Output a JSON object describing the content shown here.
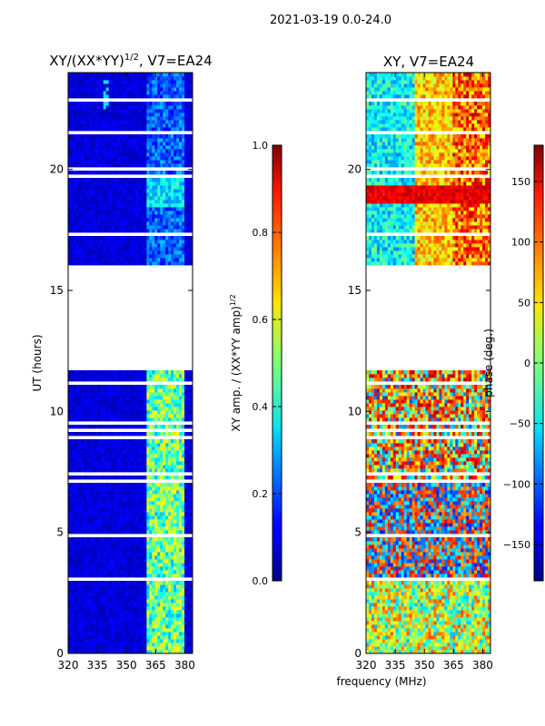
{
  "figure": {
    "suptitle": "2021-03-19 0.0-24.0",
    "common_xlabel": "frequency (MHz)"
  },
  "chart_data": [
    {
      "type": "heatmap",
      "name": "amplitude-ratio",
      "title": "XY/(XX*YY)",
      "title_superscript": "1/2",
      "title_suffix": ", V7=EA24",
      "xlabel": "",
      "ylabel": "UT (hours)",
      "xlim": [
        320,
        384
      ],
      "ylim": [
        0,
        24
      ],
      "xticks": [
        320,
        335,
        350,
        365,
        380
      ],
      "yticks": [
        0,
        5,
        10,
        15,
        20
      ],
      "data_gaps_hours": [
        [
          11.7,
          16.0
        ]
      ],
      "colorbar": {
        "label": "XY amp. / (XX*YY amp)",
        "label_superscript": "1/2",
        "range": [
          0.0,
          1.0
        ],
        "ticks": [
          "0.0",
          "0.2",
          "0.4",
          "0.6",
          "0.8",
          "1.0"
        ],
        "tick_values": [
          0.0,
          0.2,
          0.4,
          0.6,
          0.8,
          1.0
        ],
        "colormap": "jet"
      }
    },
    {
      "type": "heatmap",
      "name": "phase",
      "title": "XY, V7=EA24",
      "xlabel": "frequency (MHz)",
      "ylabel": "",
      "xlim": [
        320,
        384
      ],
      "ylim": [
        0,
        24
      ],
      "xticks": [
        320,
        335,
        350,
        365,
        380
      ],
      "yticks": [
        0,
        5,
        10,
        15,
        20
      ],
      "data_gaps_hours": [
        [
          11.7,
          16.0
        ]
      ],
      "colorbar": {
        "label": "phase (deg.)",
        "range": [
          -180,
          180
        ],
        "ticks": [
          "150",
          "100",
          "50",
          "0",
          "−50",
          "−100",
          "−150"
        ],
        "tick_values": [
          150,
          100,
          50,
          0,
          -50,
          -100,
          -150
        ],
        "colormap": "jet"
      }
    }
  ]
}
